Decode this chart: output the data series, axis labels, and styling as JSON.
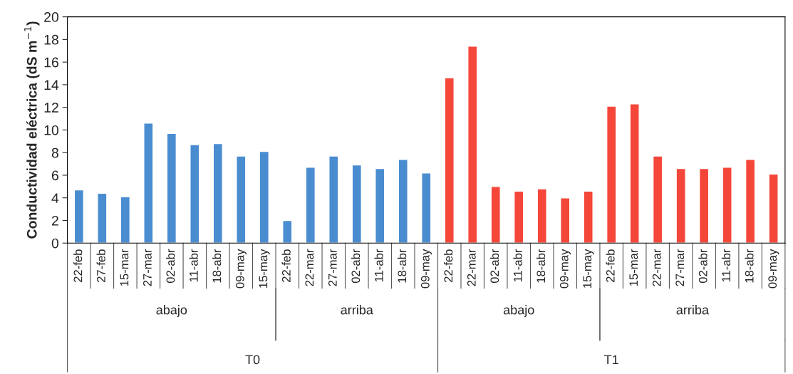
{
  "chart_data": {
    "type": "bar",
    "ylabel": "Conductividad eléctrica (dS m$^{−1}$)",
    "categories": [
      "22-feb",
      "27-feb",
      "15-mar",
      "27-mar",
      "02-abr",
      "11-abr",
      "18-abr",
      "09-may",
      "15-may",
      "22-feb",
      "22-mar",
      "27-mar",
      "02-abr",
      "11-abr",
      "18-abr",
      "09-may",
      "22-feb",
      "22-mar",
      "02-abr",
      "11-abr",
      "18-abr",
      "09-may",
      "15-may",
      "22-feb",
      "15-mar",
      "22-mar",
      "27-mar",
      "02-abr",
      "11-abr",
      "18-abr",
      "09-may"
    ],
    "series": [
      {
        "color": "#4a8cd0",
        "values": [
          4.7,
          4.4,
          4.1,
          10.6,
          9.7,
          8.7,
          8.8,
          7.7,
          8.1,
          null,
          null,
          null,
          null,
          null,
          null,
          null,
          null,
          null,
          null,
          null,
          null,
          null,
          null,
          null,
          null,
          null,
          null,
          null,
          null,
          null,
          null
        ]
      },
      {
        "color": "#4a8cd0",
        "values": [
          null,
          null,
          null,
          null,
          null,
          null,
          null,
          null,
          null,
          2.0,
          6.7,
          7.7,
          6.9,
          6.6,
          7.4,
          6.2,
          null,
          null,
          null,
          null,
          null,
          null,
          null,
          null,
          null,
          null,
          null,
          null,
          null,
          null,
          null
        ]
      },
      {
        "color": "#f5463a",
        "values": [
          null,
          null,
          null,
          null,
          null,
          null,
          null,
          null,
          null,
          null,
          null,
          null,
          null,
          null,
          null,
          null,
          14.6,
          17.4,
          5.0,
          4.6,
          4.8,
          4.0,
          4.6,
          null,
          null,
          null,
          null,
          null,
          null,
          null,
          null
        ]
      },
      {
        "color": "#f5463a",
        "values": [
          null,
          null,
          null,
          null,
          null,
          null,
          null,
          null,
          null,
          null,
          null,
          null,
          null,
          null,
          null,
          null,
          null,
          null,
          null,
          null,
          null,
          null,
          null,
          12.1,
          12.3,
          7.7,
          6.6,
          6.6,
          6.7,
          7.4,
          6.1
        ]
      }
    ],
    "annotations": [
      "abajo",
      "arriba",
      "abajo",
      "arriba",
      "T0",
      "T1"
    ],
    "ylim": [
      0,
      20
    ],
    "yticks": [
      0,
      2,
      4,
      6,
      8,
      10,
      12,
      14,
      16,
      18,
      20
    ],
    "grid": false,
    "legend": false
  }
}
